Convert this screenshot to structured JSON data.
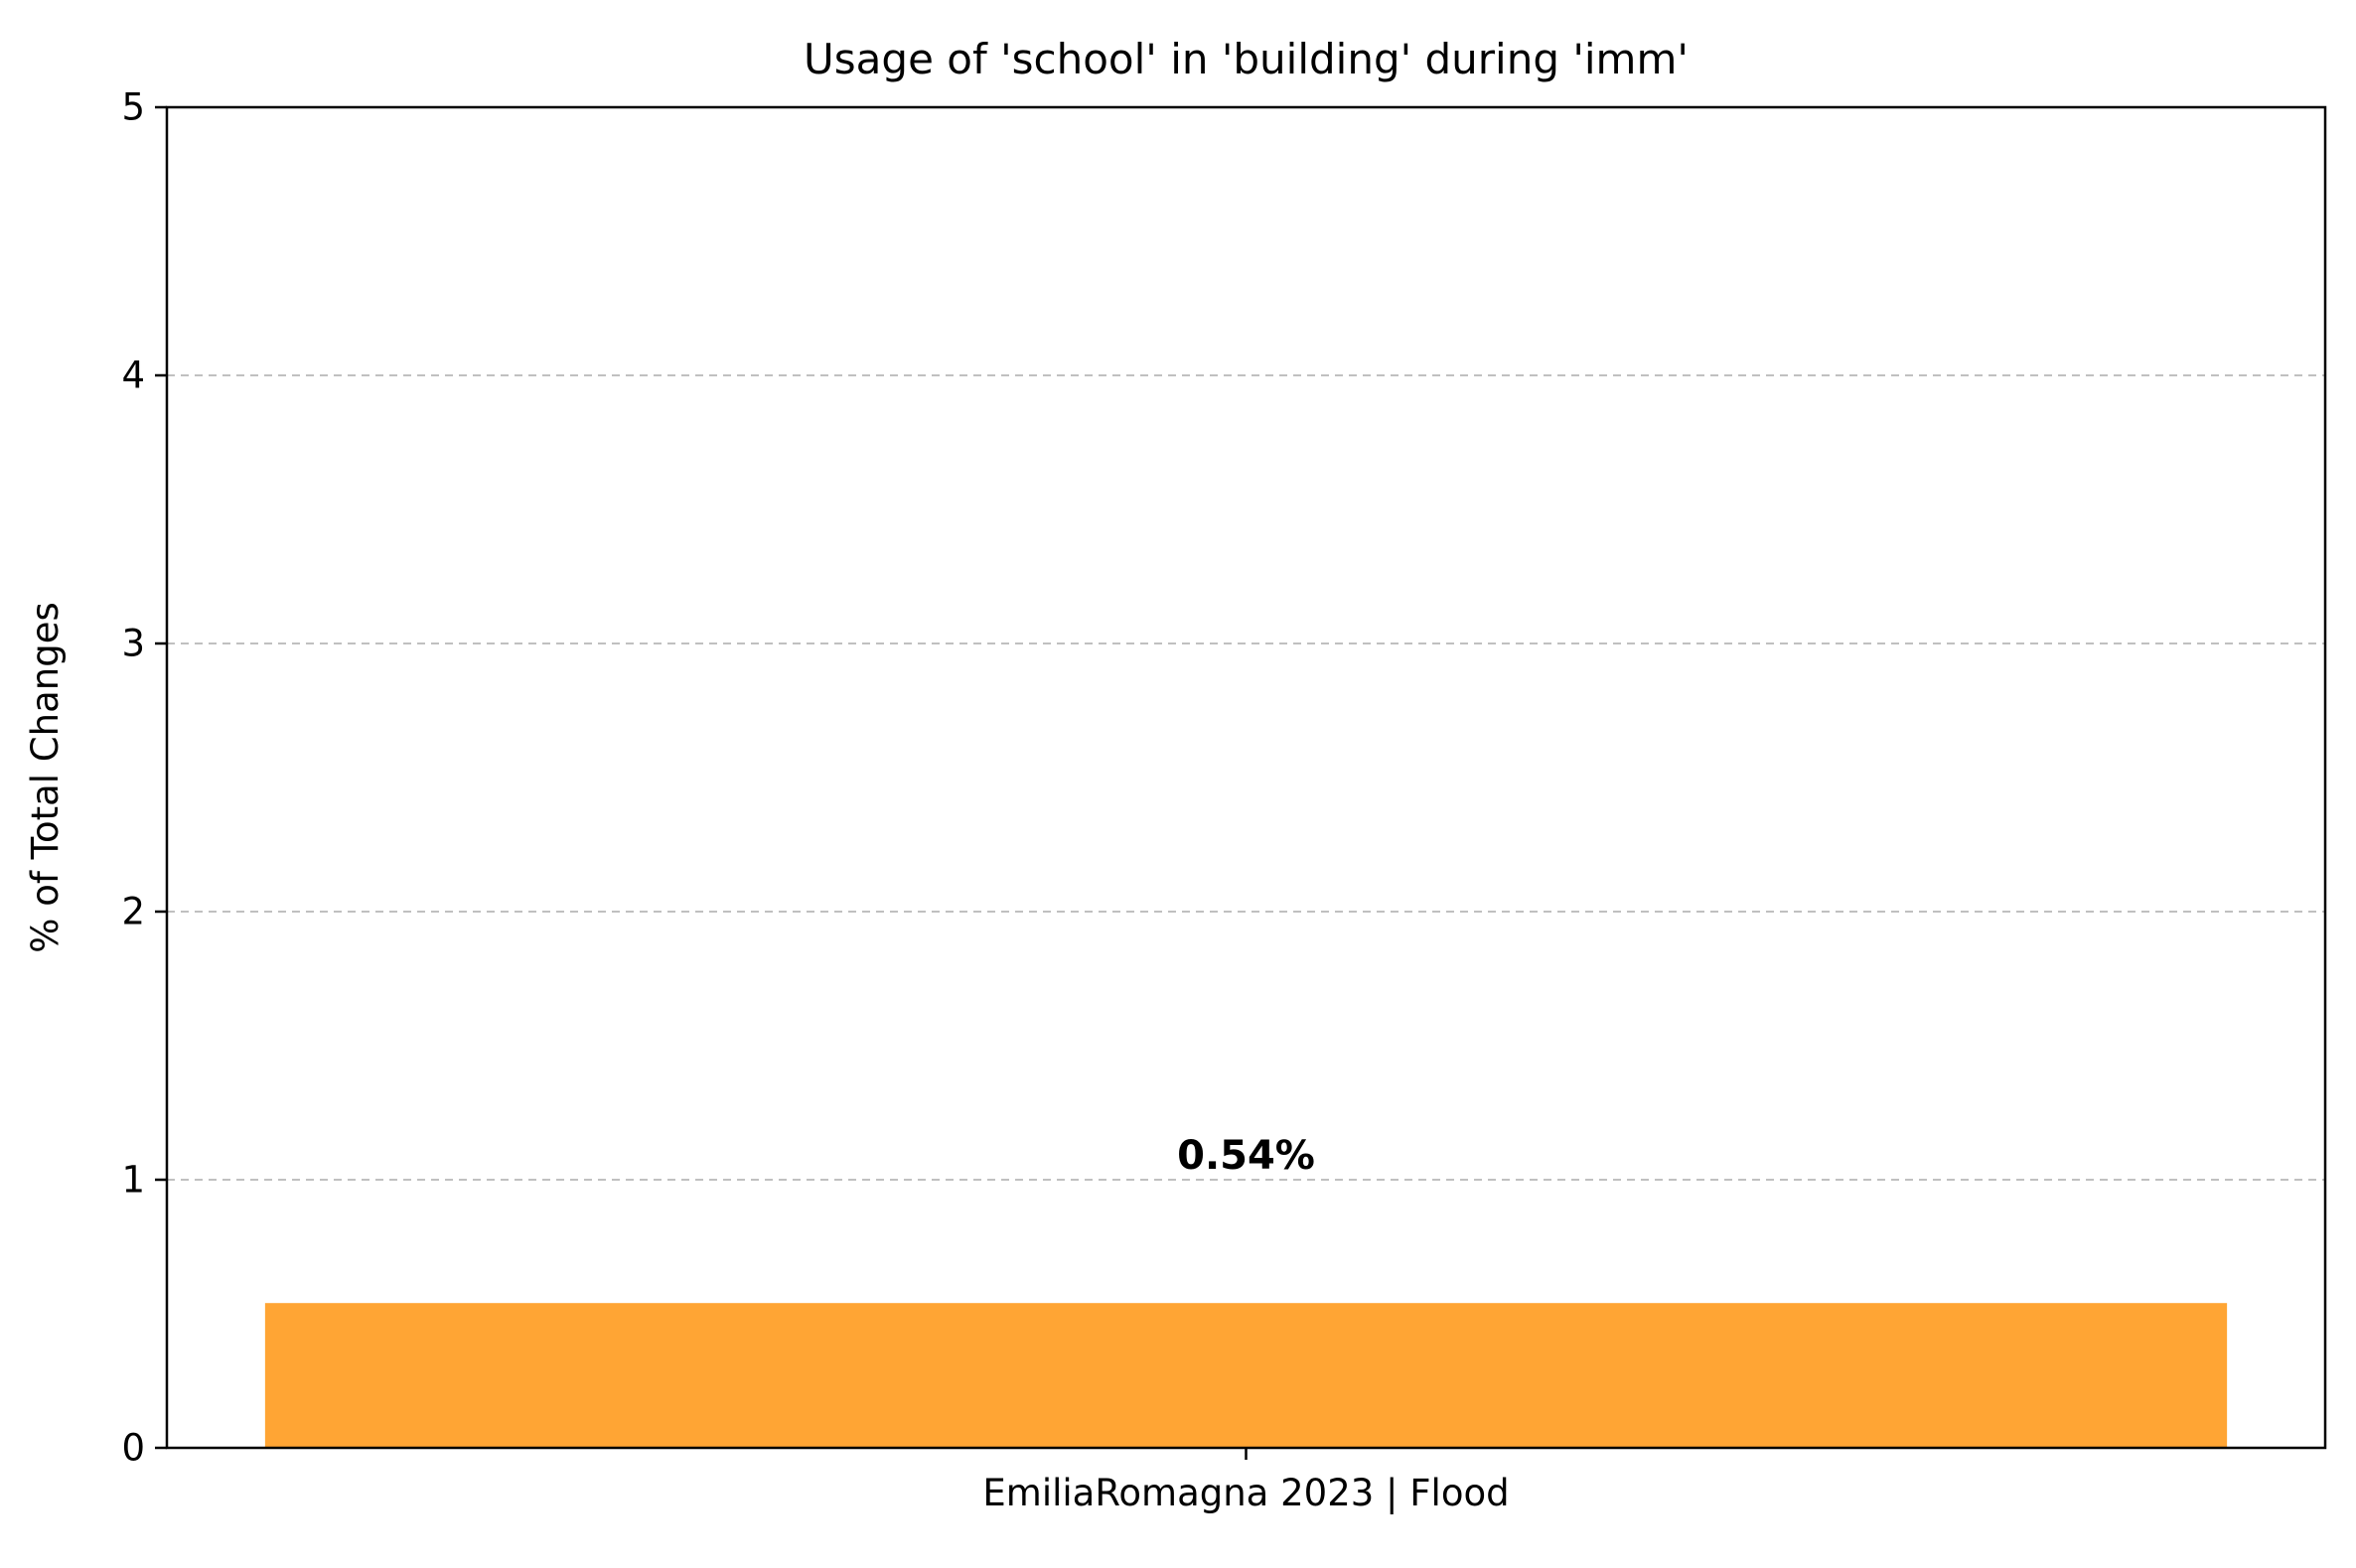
{
  "chart_data": {
    "type": "bar",
    "title": "Usage of 'school' in 'building' during 'imm'",
    "xlabel": "",
    "ylabel": "% of Total Changes",
    "categories": [
      "EmiliaRomagna 2023 | Flood"
    ],
    "values": [
      0.54
    ],
    "value_labels": [
      "0.54%"
    ],
    "ylim": [
      0,
      5
    ],
    "yticks": [
      0,
      1,
      2,
      3,
      4,
      5
    ],
    "ytick_labels": [
      "0",
      "1",
      "2",
      "3",
      "4",
      "5"
    ],
    "grid": "y-axis dashed",
    "legend": "none",
    "colors": {
      "bar": "#ffa534",
      "grid": "#c0c0c0",
      "axis": "#000000"
    }
  }
}
